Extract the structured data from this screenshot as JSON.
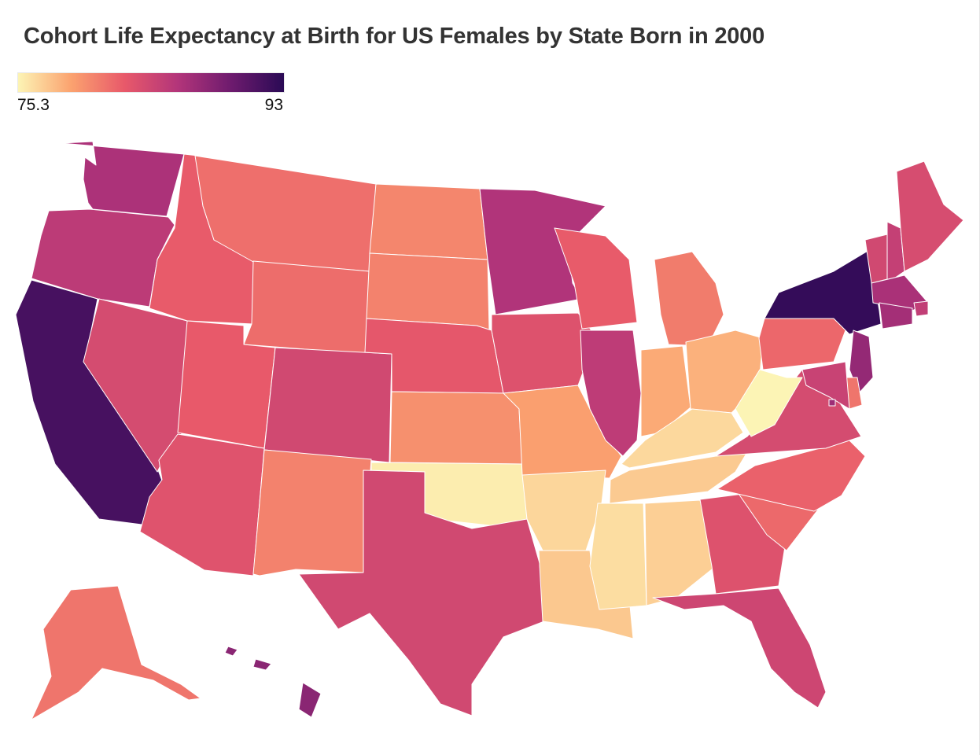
{
  "title": "Cohort Life Expectancy at Birth for US Females by State Born in 2000",
  "legend": {
    "min_label": "75.3",
    "max_label": "93",
    "min_value": 75.3,
    "max_value": 93,
    "colors": [
      "#fcf4b5",
      "#fba26f",
      "#e8596a",
      "#b3357a",
      "#6e1b6e",
      "#2a0a55"
    ]
  },
  "chart_data": {
    "type": "choropleth",
    "title": "Cohort Life Expectancy at Birth for US Females by State Born in 2000",
    "colorscale_range": [
      75.3,
      93
    ],
    "values": {
      "WA": 86.3,
      "OR": 85.3,
      "CA": 91.5,
      "NV": 83.7,
      "ID": 82.3,
      "MT": 81.3,
      "WY": 81.4,
      "UT": 82.4,
      "AZ": 83.0,
      "CO": 84.0,
      "NM": 80.4,
      "ND": 80.2,
      "SD": 80.4,
      "NE": 82.6,
      "KS": 79.7,
      "OK": 75.6,
      "TX": 84.0,
      "MN": 86.0,
      "IA": 83.1,
      "MO": 79.0,
      "AR": 76.6,
      "LA": 77.2,
      "WI": 82.3,
      "IL": 85.2,
      "MI": 80.7,
      "IN": 78.5,
      "OH": 78.2,
      "KY": 76.5,
      "TN": 77.1,
      "MS": 76.3,
      "AL": 76.9,
      "GA": 83.1,
      "FL": 84.2,
      "SC": 81.6,
      "NC": 82.0,
      "VA": 83.7,
      "WV": 75.3,
      "PA": 81.7,
      "NY": 92.5,
      "VT": 84.0,
      "NH": 84.8,
      "ME": 83.6,
      "MA": 86.4,
      "RI": 85.0,
      "CT": 86.7,
      "NJ": 87.5,
      "DE": 81.0,
      "MD": 84.5,
      "DC": 87.0,
      "AK": 81.0,
      "HI": 88.0
    }
  }
}
